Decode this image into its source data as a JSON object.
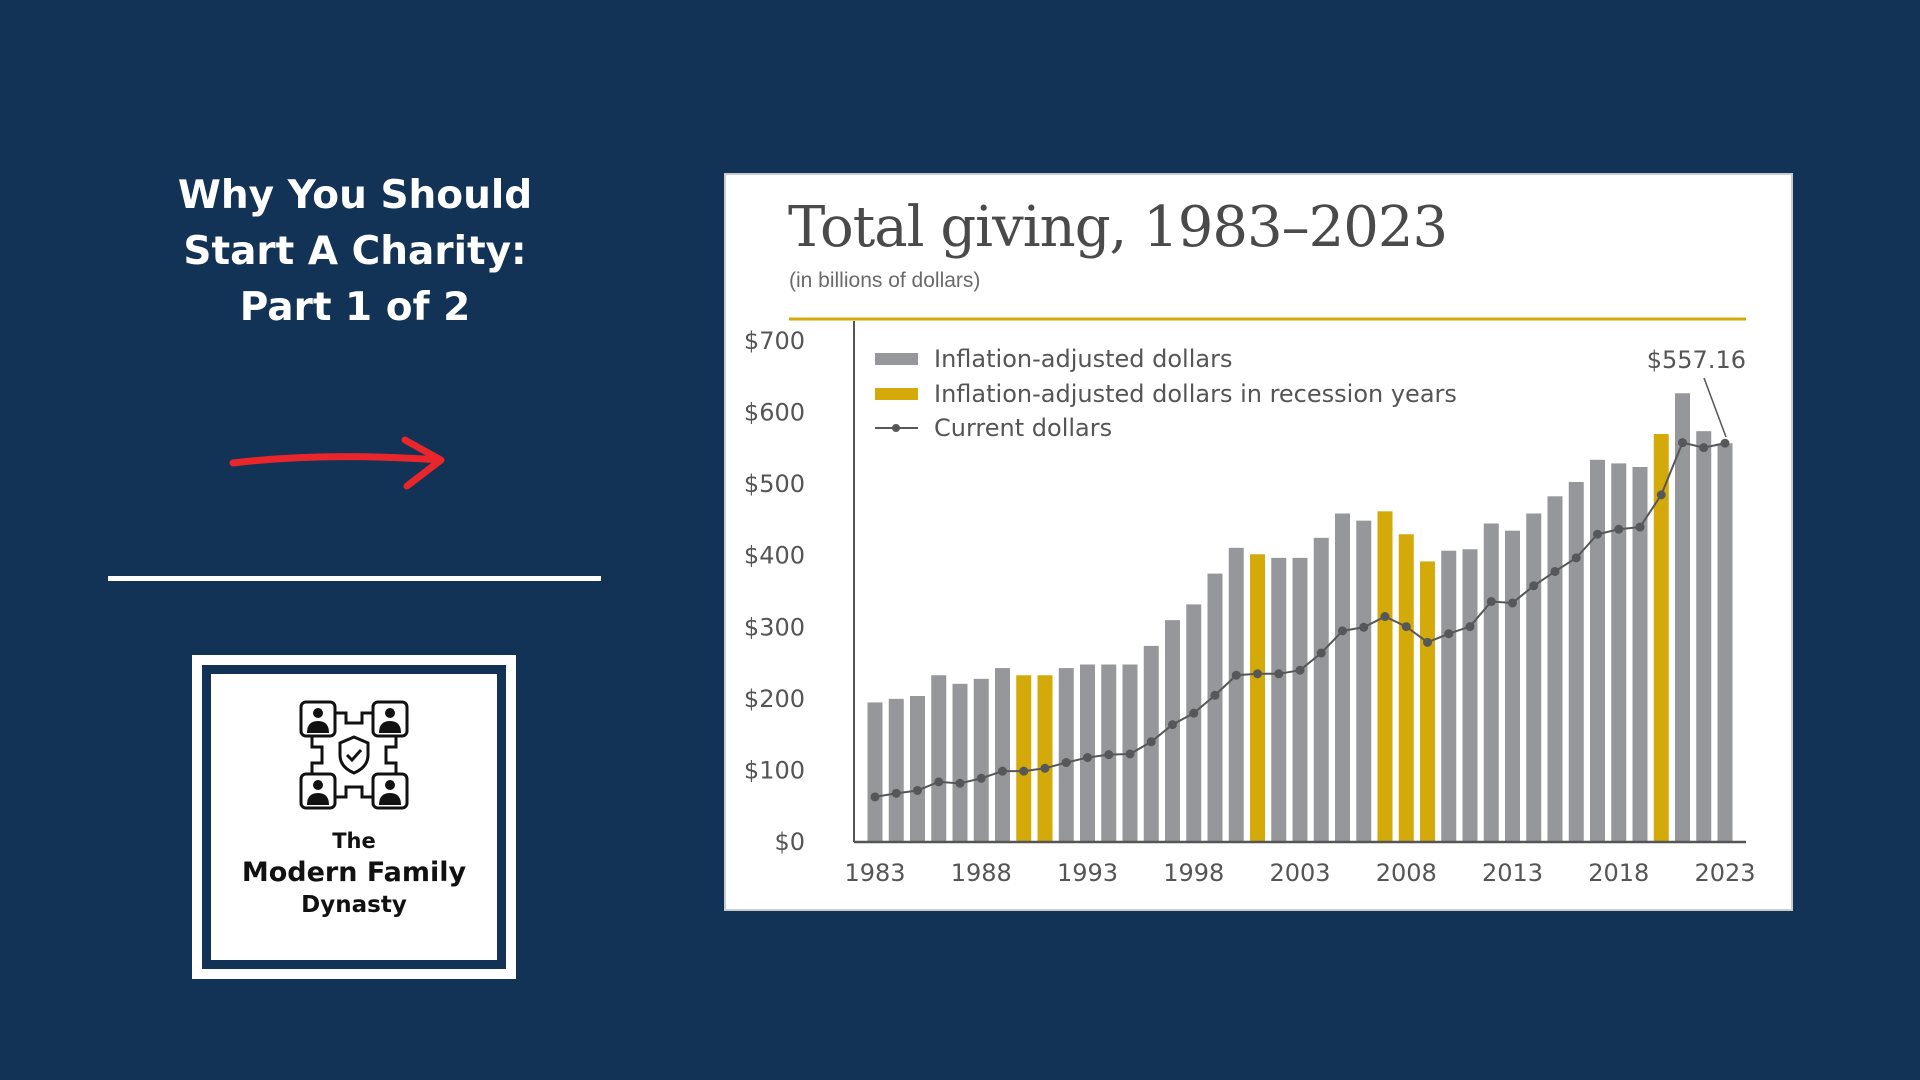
{
  "headline": {
    "lines": [
      "Why You Should",
      "Start A Charity:",
      "Part 1 of 2"
    ]
  },
  "logo": {
    "line1": "The",
    "line2": "Modern Family",
    "line3": "Dynasty",
    "icon": "family-network-shield-icon"
  },
  "colors": {
    "background": "#123256",
    "bar": "#96979a",
    "recession_bar": "#d4a90a",
    "line": "#555759",
    "arrow": "#e8262b",
    "rule": "#d4a90a"
  },
  "chart_data": {
    "type": "bar",
    "title": "Total giving, 1983–2023",
    "subtitle": "(in billions of dollars)",
    "xlabel": "",
    "ylabel": "",
    "ylim": [
      0,
      700
    ],
    "y_ticks": [
      "$0",
      "$100",
      "$200",
      "$300",
      "$400",
      "$500",
      "$600",
      "$700"
    ],
    "y_tick_values": [
      0,
      100,
      200,
      300,
      400,
      500,
      600,
      700
    ],
    "x_ticks": [
      "1983",
      "1988",
      "1993",
      "1998",
      "2003",
      "2008",
      "2013",
      "2018",
      "2023"
    ],
    "grid": false,
    "legend_position": "top-left",
    "legend": [
      "Inflation-adjusted dollars",
      "Inflation-adjusted dollars in recession years",
      "Current dollars"
    ],
    "annotation": "$557.16",
    "x": [
      1983,
      1984,
      1985,
      1986,
      1987,
      1988,
      1989,
      1990,
      1991,
      1992,
      1993,
      1994,
      1995,
      1996,
      1997,
      1998,
      1999,
      2000,
      2001,
      2002,
      2003,
      2004,
      2005,
      2006,
      2007,
      2008,
      2009,
      2010,
      2011,
      2012,
      2013,
      2014,
      2015,
      2016,
      2017,
      2018,
      2019,
      2020,
      2021,
      2022,
      2023
    ],
    "recession_years": [
      1990,
      1991,
      2001,
      2007,
      2008,
      2009,
      2020
    ],
    "series": [
      {
        "name": "Inflation-adjusted dollars",
        "type": "bar",
        "values": [
          195,
          200,
          204,
          233,
          221,
          228,
          243,
          233,
          233,
          243,
          248,
          248,
          248,
          274,
          310,
          332,
          375,
          411,
          402,
          397,
          397,
          425,
          459,
          449,
          462,
          430,
          392,
          407,
          409,
          445,
          435,
          459,
          483,
          503,
          534,
          529,
          524,
          570,
          627,
          574,
          557
        ]
      },
      {
        "name": "Current dollars",
        "type": "line",
        "values": [
          63,
          68,
          72,
          84,
          82,
          89,
          99,
          99,
          103,
          111,
          118,
          122,
          123,
          140,
          164,
          180,
          205,
          233,
          235,
          235,
          240,
          264,
          295,
          300,
          315,
          301,
          279,
          291,
          301,
          336,
          334,
          358,
          378,
          397,
          430,
          437,
          440,
          485,
          558,
          551,
          557.16
        ]
      }
    ]
  }
}
